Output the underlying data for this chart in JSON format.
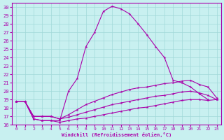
{
  "xlabel": "Windchill (Refroidissement éolien,°C)",
  "xlim": [
    -0.5,
    23.5
  ],
  "ylim": [
    16,
    30.5
  ],
  "yticks": [
    16,
    17,
    18,
    19,
    20,
    21,
    22,
    23,
    24,
    25,
    26,
    27,
    28,
    29,
    30
  ],
  "xticks": [
    0,
    1,
    2,
    3,
    4,
    5,
    6,
    7,
    8,
    9,
    10,
    11,
    12,
    13,
    14,
    15,
    16,
    17,
    18,
    19,
    20,
    21,
    22,
    23
  ],
  "background_color": "#c8f0f0",
  "grid_color": "#a0d8d8",
  "line_color": "#aa00aa",
  "lines": [
    {
      "x": [
        0,
        1,
        2,
        3,
        4,
        5,
        6,
        7,
        8,
        9,
        10,
        11,
        12,
        13,
        14,
        15,
        16,
        17,
        18,
        19,
        20,
        21,
        22
      ],
      "y": [
        18.8,
        18.8,
        16.7,
        16.5,
        16.5,
        16.5,
        20.0,
        21.5,
        25.3,
        27.0,
        29.5,
        30.1,
        29.8,
        29.2,
        28.0,
        26.7,
        25.3,
        24.0,
        21.3,
        21.0,
        20.5,
        19.7,
        19.0
      ]
    },
    {
      "x": [
        0,
        1,
        2,
        3,
        4,
        5,
        6,
        7,
        8,
        9,
        10,
        11,
        12,
        13,
        14,
        15,
        16,
        17,
        18,
        19,
        20,
        21,
        22,
        23
      ],
      "y": [
        18.8,
        18.8,
        17.0,
        17.0,
        17.0,
        16.7,
        17.2,
        17.8,
        18.4,
        18.8,
        19.2,
        19.6,
        19.9,
        20.2,
        20.4,
        20.5,
        20.7,
        20.9,
        21.0,
        21.2,
        21.3,
        20.8,
        20.5,
        19.2
      ]
    },
    {
      "x": [
        0,
        1,
        2,
        3,
        4,
        5,
        6,
        7,
        8,
        9,
        10,
        11,
        12,
        13,
        14,
        15,
        16,
        17,
        18,
        19,
        20,
        21,
        22,
        23
      ],
      "y": [
        18.8,
        18.8,
        17.0,
        17.0,
        17.0,
        16.7,
        16.9,
        17.2,
        17.5,
        17.8,
        18.1,
        18.4,
        18.6,
        18.8,
        19.0,
        19.2,
        19.4,
        19.5,
        19.7,
        19.9,
        20.0,
        19.8,
        19.5,
        19.0
      ]
    },
    {
      "x": [
        0,
        1,
        2,
        3,
        4,
        5,
        6,
        7,
        8,
        9,
        10,
        11,
        12,
        13,
        14,
        15,
        16,
        17,
        18,
        19,
        20,
        21,
        22,
        23
      ],
      "y": [
        18.8,
        18.8,
        16.7,
        16.5,
        16.5,
        16.3,
        16.5,
        16.7,
        16.8,
        17.0,
        17.2,
        17.4,
        17.6,
        17.8,
        18.0,
        18.1,
        18.3,
        18.5,
        18.7,
        18.9,
        19.0,
        19.0,
        18.9,
        19.0
      ]
    }
  ]
}
